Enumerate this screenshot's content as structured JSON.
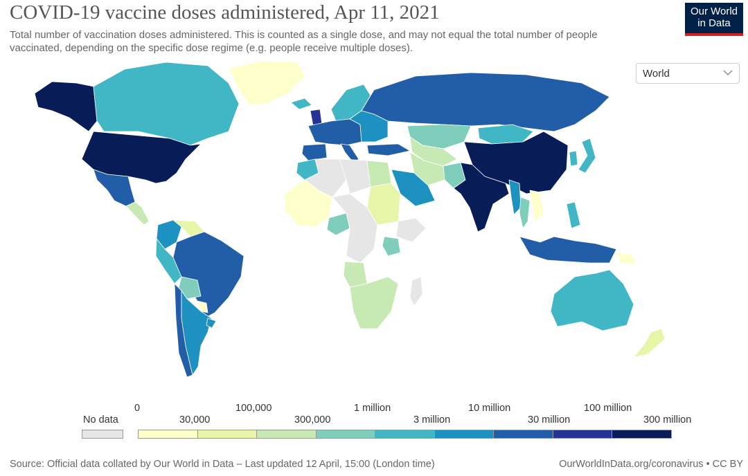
{
  "title": "COVID-19 vaccine doses administered, Apr 11, 2021",
  "subtitle": "Total number of vaccination doses administered. This is counted as a single dose, and may not equal the total number of people vaccinated, depending on the specific dose regime (e.g. people receive multiple doses).",
  "logo": {
    "line1": "Our World",
    "line2": "in Data",
    "bg_color": "#002147",
    "accent_color": "#ce261e"
  },
  "region_select": {
    "value": "World"
  },
  "legend": {
    "no_data_label": "No data",
    "no_data_color": "#e6e6e6",
    "bins": [
      {
        "color": "#ffffcc"
      },
      {
        "color": "#e6f5a8"
      },
      {
        "color": "#c7e9b4"
      },
      {
        "color": "#7fcdbb"
      },
      {
        "color": "#41b6c4"
      },
      {
        "color": "#1d91c0"
      },
      {
        "color": "#225ea8"
      },
      {
        "color": "#253494"
      },
      {
        "color": "#081d58"
      }
    ],
    "upper_ticks": [
      "0",
      "100,000",
      "1 million",
      "10 million",
      "100 million"
    ],
    "lower_ticks": [
      "30,000",
      "300,000",
      "3 million",
      "30 million",
      "300 million"
    ]
  },
  "map_regions": [
    {
      "name": "alaska",
      "color": "#081d58"
    },
    {
      "name": "canada",
      "color": "#41b6c4"
    },
    {
      "name": "greenland",
      "color": "#ffffcc"
    },
    {
      "name": "usa",
      "color": "#081d58"
    },
    {
      "name": "mexico",
      "color": "#225ea8"
    },
    {
      "name": "central-america",
      "color": "#c7e9b4"
    },
    {
      "name": "colombia",
      "color": "#1d91c0"
    },
    {
      "name": "venezuela",
      "color": "#e6f5a8"
    },
    {
      "name": "peru",
      "color": "#41b6c4"
    },
    {
      "name": "brazil",
      "color": "#225ea8"
    },
    {
      "name": "bolivia",
      "color": "#7fcdbb"
    },
    {
      "name": "paraguay",
      "color": "#ffffcc"
    },
    {
      "name": "chile",
      "color": "#225ea8"
    },
    {
      "name": "argentina",
      "color": "#1d91c0"
    },
    {
      "name": "uruguay",
      "color": "#1d91c0"
    },
    {
      "name": "iceland",
      "color": "#41b6c4"
    },
    {
      "name": "uk",
      "color": "#253494"
    },
    {
      "name": "scandinavia",
      "color": "#41b6c4"
    },
    {
      "name": "western-europe",
      "color": "#225ea8"
    },
    {
      "name": "spain",
      "color": "#225ea8"
    },
    {
      "name": "italy",
      "color": "#225ea8"
    },
    {
      "name": "eastern-europe",
      "color": "#1d91c0"
    },
    {
      "name": "turkey",
      "color": "#225ea8"
    },
    {
      "name": "russia",
      "color": "#225ea8"
    },
    {
      "name": "kazakhstan",
      "color": "#7fcdbb"
    },
    {
      "name": "mongolia",
      "color": "#41b6c4"
    },
    {
      "name": "china",
      "color": "#081d58"
    },
    {
      "name": "japan",
      "color": "#41b6c4"
    },
    {
      "name": "korea",
      "color": "#41b6c4"
    },
    {
      "name": "central-asia",
      "color": "#c7e9b4"
    },
    {
      "name": "iran",
      "color": "#c7e9b4"
    },
    {
      "name": "saudi-arabia",
      "color": "#1d91c0"
    },
    {
      "name": "pakistan",
      "color": "#7fcdbb"
    },
    {
      "name": "india",
      "color": "#081d58"
    },
    {
      "name": "myanmar",
      "color": "#1d91c0"
    },
    {
      "name": "thailand",
      "color": "#7fcdbb"
    },
    {
      "name": "vietnam",
      "color": "#ffffcc"
    },
    {
      "name": "indonesia",
      "color": "#225ea8"
    },
    {
      "name": "philippines",
      "color": "#41b6c4"
    },
    {
      "name": "png",
      "color": "#ffffcc"
    },
    {
      "name": "australia",
      "color": "#41b6c4"
    },
    {
      "name": "new-zealand",
      "color": "#e6f5a8"
    },
    {
      "name": "morocco",
      "color": "#41b6c4"
    },
    {
      "name": "algeria",
      "color": "#e6e6e6"
    },
    {
      "name": "libya",
      "color": "#e6e6e6"
    },
    {
      "name": "egypt",
      "color": "#c7e9b4"
    },
    {
      "name": "sudan",
      "color": "#e6f5a8"
    },
    {
      "name": "west-africa",
      "color": "#ffffcc"
    },
    {
      "name": "nigeria",
      "color": "#7fcdbb"
    },
    {
      "name": "central-africa",
      "color": "#e6e6e6"
    },
    {
      "name": "ethiopia",
      "color": "#e6e6e6"
    },
    {
      "name": "kenya",
      "color": "#7fcdbb"
    },
    {
      "name": "angola",
      "color": "#c7e9b4"
    },
    {
      "name": "southern-africa",
      "color": "#c7e9b4"
    },
    {
      "name": "madagascar",
      "color": "#e6e6e6"
    }
  ],
  "footer": {
    "source": "Source: Official data collated by Our World in Data – Last updated 12 April, 15:00 (London time)",
    "link": "OurWorldInData.org/coronavirus • CC BY"
  }
}
